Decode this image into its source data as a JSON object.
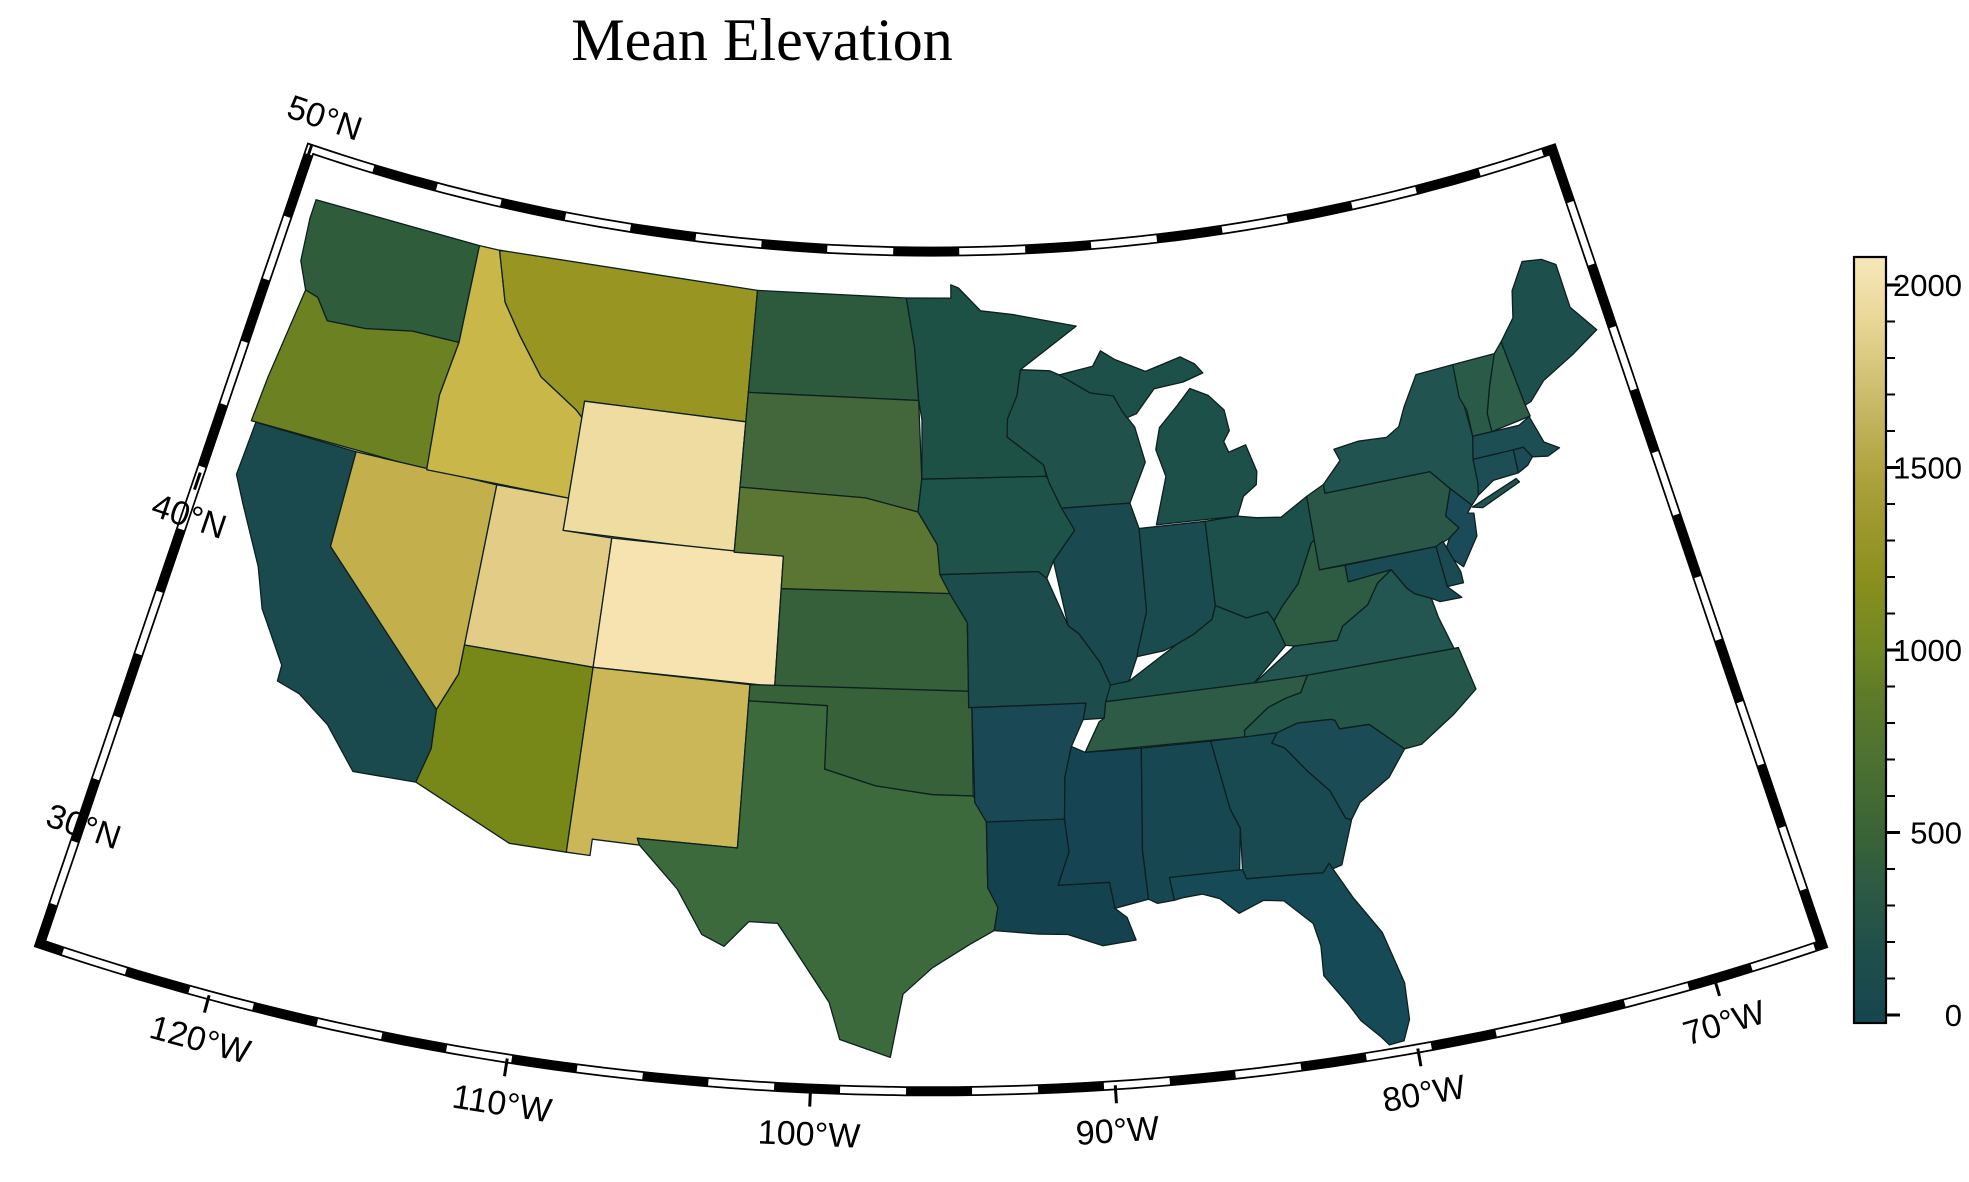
{
  "chart_data": {
    "type": "choropleth",
    "title": "Mean Elevation",
    "colorbar": {
      "max_value": 2076,
      "minor_tick_interval": 100,
      "ticks": [
        {
          "value": 2000,
          "label": "2000"
        },
        {
          "value": 1500,
          "label": "1500"
        },
        {
          "value": 1000,
          "label": "1000"
        },
        {
          "value": 500,
          "label": "500"
        },
        {
          "value": 0,
          "label": "0"
        }
      ],
      "gradient_stops": [
        {
          "value": 0,
          "color": "#16454F"
        },
        {
          "value": 200,
          "color": "#1F4F4B"
        },
        {
          "value": 400,
          "color": "#2F5C41"
        },
        {
          "value": 500,
          "color": "#396336"
        },
        {
          "value": 700,
          "color": "#4B7030"
        },
        {
          "value": 900,
          "color": "#5F7C28"
        },
        {
          "value": 1000,
          "color": "#6E8724"
        },
        {
          "value": 1200,
          "color": "#8A8F1D"
        },
        {
          "value": 1400,
          "color": "#A39B33"
        },
        {
          "value": 1500,
          "color": "#AFA440"
        },
        {
          "value": 1700,
          "color": "#CBBC6C"
        },
        {
          "value": 1900,
          "color": "#E8D695"
        },
        {
          "value": 2076,
          "color": "#F7E8BA"
        }
      ]
    },
    "graticule": {
      "lat_ticks": [
        {
          "deg": 50,
          "label": "50°N"
        },
        {
          "deg": 40,
          "label": "40°N"
        },
        {
          "deg": 30,
          "label": "30°N"
        }
      ],
      "lon_ticks": [
        {
          "deg": -120,
          "label": "120°W"
        },
        {
          "deg": -110,
          "label": "110°W"
        },
        {
          "deg": -100,
          "label": "100°W"
        },
        {
          "deg": -90,
          "label": "90°W"
        },
        {
          "deg": -80,
          "label": "80°W"
        },
        {
          "deg": -70,
          "label": "70°W"
        }
      ]
    },
    "frame_color": "#000000",
    "background_color": "#FFFFFF",
    "state_border_color": "#0d1f1f",
    "states": [
      {
        "id": "WA",
        "name": "Washington",
        "value_m": 520,
        "color": "#2F5D3C"
      },
      {
        "id": "OR",
        "name": "Oregon",
        "value_m": 1000,
        "color": "#6C8121"
      },
      {
        "id": "CA",
        "name": "California",
        "value_m": 120,
        "color": "#1B4A4E"
      },
      {
        "id": "NV",
        "name": "Nevada",
        "value_m": 1600,
        "color": "#C3B04C"
      },
      {
        "id": "ID",
        "name": "Idaho",
        "value_m": 1630,
        "color": "#C9B74A"
      },
      {
        "id": "MT",
        "name": "Montana",
        "value_m": 1260,
        "color": "#999523"
      },
      {
        "id": "WY",
        "name": "Wyoming",
        "value_m": 2010,
        "color": "#EFDCA0"
      },
      {
        "id": "UT",
        "name": "Utah",
        "value_m": 1850,
        "color": "#E3CC86"
      },
      {
        "id": "CO",
        "name": "Colorado",
        "value_m": 2070,
        "color": "#F7E3B0"
      },
      {
        "id": "AZ",
        "name": "Arizona",
        "value_m": 1080,
        "color": "#778819"
      },
      {
        "id": "NM",
        "name": "New Mexico",
        "value_m": 1660,
        "color": "#CBB757"
      },
      {
        "id": "ND",
        "name": "North Dakota",
        "value_m": 460,
        "color": "#2D5A3C"
      },
      {
        "id": "SD",
        "name": "South Dakota",
        "value_m": 590,
        "color": "#43663A"
      },
      {
        "id": "NE",
        "name": "Nebraska",
        "value_m": 780,
        "color": "#5B7533"
      },
      {
        "id": "KS",
        "name": "Kansas",
        "value_m": 530,
        "color": "#35603A"
      },
      {
        "id": "OK",
        "name": "Oklahoma",
        "value_m": 510,
        "color": "#366139"
      },
      {
        "id": "TX",
        "name": "Texas",
        "value_m": 550,
        "color": "#3D6A3C"
      },
      {
        "id": "MN",
        "name": "Minnesota",
        "value_m": 310,
        "color": "#1E5146"
      },
      {
        "id": "IA",
        "name": "Iowa",
        "value_m": 330,
        "color": "#1D5348"
      },
      {
        "id": "MO",
        "name": "Missouri",
        "value_m": 260,
        "color": "#1C4C4C"
      },
      {
        "id": "AR",
        "name": "Arkansas",
        "value_m": 180,
        "color": "#1A4955"
      },
      {
        "id": "LA",
        "name": "Louisiana",
        "value_m": 40,
        "color": "#14434F"
      },
      {
        "id": "WI",
        "name": "Wisconsin",
        "value_m": 300,
        "color": "#20514A"
      },
      {
        "id": "IL",
        "name": "Illinois",
        "value_m": 180,
        "color": "#1A4A4F"
      },
      {
        "id": "MI",
        "name": "Michigan",
        "value_m": 270,
        "color": "#1C5049"
      },
      {
        "id": "IN",
        "name": "Indiana",
        "value_m": 210,
        "color": "#1A4B4E"
      },
      {
        "id": "OH",
        "name": "Ohio",
        "value_m": 260,
        "color": "#1D4F4B"
      },
      {
        "id": "KY",
        "name": "Kentucky",
        "value_m": 240,
        "color": "#1D504A"
      },
      {
        "id": "TN",
        "name": "Tennessee",
        "value_m": 350,
        "color": "#2E5B46"
      },
      {
        "id": "MS",
        "name": "Mississippi",
        "value_m": 100,
        "color": "#164453"
      },
      {
        "id": "AL",
        "name": "Alabama",
        "value_m": 160,
        "color": "#174851"
      },
      {
        "id": "GA",
        "name": "Georgia",
        "value_m": 190,
        "color": "#194A52"
      },
      {
        "id": "FL",
        "name": "Florida",
        "value_m": 50,
        "color": "#174A57"
      },
      {
        "id": "SC",
        "name": "South Carolina",
        "value_m": 120,
        "color": "#1B4B55"
      },
      {
        "id": "NC",
        "name": "North Carolina",
        "value_m": 310,
        "color": "#245649"
      },
      {
        "id": "VA",
        "name": "Virginia",
        "value_m": 300,
        "color": "#235551"
      },
      {
        "id": "WV",
        "name": "West Virginia",
        "value_m": 470,
        "color": "#2E5C43"
      },
      {
        "id": "PA",
        "name": "Pennsylvania",
        "value_m": 350,
        "color": "#2A5747"
      },
      {
        "id": "NY",
        "name": "New York",
        "value_m": 320,
        "color": "#215350"
      },
      {
        "id": "VT",
        "name": "Vermont",
        "value_m": 330,
        "color": "#2A5A48"
      },
      {
        "id": "NH",
        "name": "New Hampshire",
        "value_m": 410,
        "color": "#2E5E49"
      },
      {
        "id": "ME",
        "name": "Maine",
        "value_m": 220,
        "color": "#1D4F4D"
      },
      {
        "id": "MA",
        "name": "Massachusetts",
        "value_m": 170,
        "color": "#1D4E53"
      },
      {
        "id": "RI",
        "name": "Rhode Island",
        "value_m": 120,
        "color": "#1C4B55"
      },
      {
        "id": "CT",
        "name": "Connecticut",
        "value_m": 170,
        "color": "#1E4E55"
      },
      {
        "id": "NJ",
        "name": "New Jersey",
        "value_m": 90,
        "color": "#1B4B58"
      },
      {
        "id": "DE",
        "name": "Delaware",
        "value_m": 100,
        "color": "#1A4B53"
      },
      {
        "id": "MD",
        "name": "Maryland",
        "value_m": 100,
        "color": "#1A4B53"
      }
    ]
  }
}
